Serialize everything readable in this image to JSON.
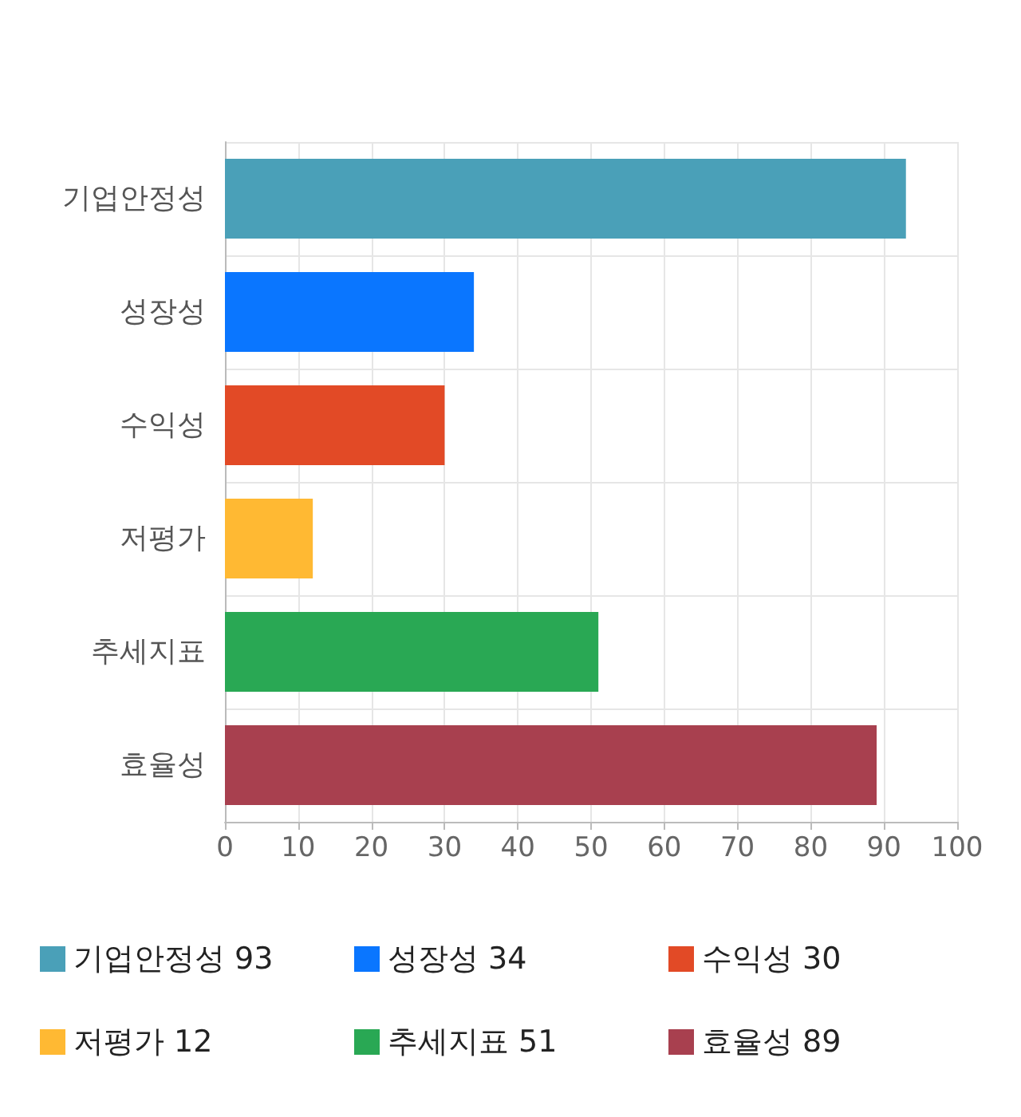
{
  "chart_data": {
    "type": "bar",
    "orientation": "horizontal",
    "categories": [
      "기업안정성",
      "성장성",
      "수익성",
      "저평가",
      "추세지표",
      "효율성"
    ],
    "series": [
      {
        "name": "기업안정성 93",
        "color": "#4aa0b8",
        "values": [
          93,
          null,
          null,
          null,
          null,
          null
        ]
      },
      {
        "name": "성장성 34",
        "color": "#0a76ff",
        "values": [
          null,
          34,
          null,
          null,
          null,
          null
        ]
      },
      {
        "name": "수익성 30",
        "color": "#e24a26",
        "values": [
          null,
          null,
          30,
          null,
          null,
          null
        ]
      },
      {
        "name": "저평가 12",
        "color": "#ffb933",
        "values": [
          null,
          null,
          null,
          12,
          null,
          null
        ]
      },
      {
        "name": "추세지표 51",
        "color": "#29a854",
        "values": [
          null,
          null,
          null,
          null,
          51,
          null
        ]
      },
      {
        "name": "효율성 89",
        "color": "#a8404f",
        "values": [
          null,
          null,
          null,
          null,
          null,
          89
        ]
      }
    ],
    "xlim": [
      0,
      100
    ],
    "xticks": [
      0,
      10,
      20,
      30,
      40,
      50,
      60,
      70,
      80,
      90,
      100
    ],
    "grid": true,
    "legend": "bottom"
  }
}
